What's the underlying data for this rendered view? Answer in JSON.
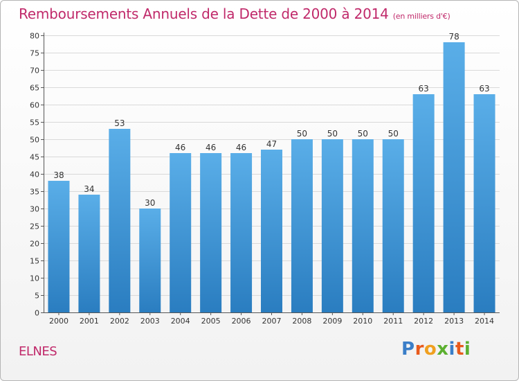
{
  "header": {
    "title": "Remboursements Annuels de la Dette de 2000 à 2014",
    "unit_note": "(en milliers d'€)"
  },
  "footer": {
    "commune": "ELNES",
    "brand": "Proxiti"
  },
  "colors": {
    "title": "#c0296a",
    "bar_top": "#5aaee8",
    "bar_bottom": "#2a7dc0",
    "grid": "#d9d9d9",
    "axis": "#555555"
  },
  "chart_data": {
    "type": "bar",
    "title": "Remboursements Annuels de la Dette de 2000 à 2014",
    "subtitle": "(en milliers d'€)",
    "xlabel": "",
    "ylabel": "",
    "categories": [
      "2000",
      "2001",
      "2002",
      "2003",
      "2004",
      "2005",
      "2006",
      "2007",
      "2008",
      "2009",
      "2010",
      "2011",
      "2012",
      "2013",
      "2014"
    ],
    "values": [
      38,
      34,
      53,
      30,
      46,
      46,
      46,
      47,
      50,
      50,
      50,
      50,
      63,
      78,
      63
    ],
    "ylim": [
      0,
      80
    ],
    "ytick_step": 5,
    "grid": true,
    "legend": "none"
  }
}
